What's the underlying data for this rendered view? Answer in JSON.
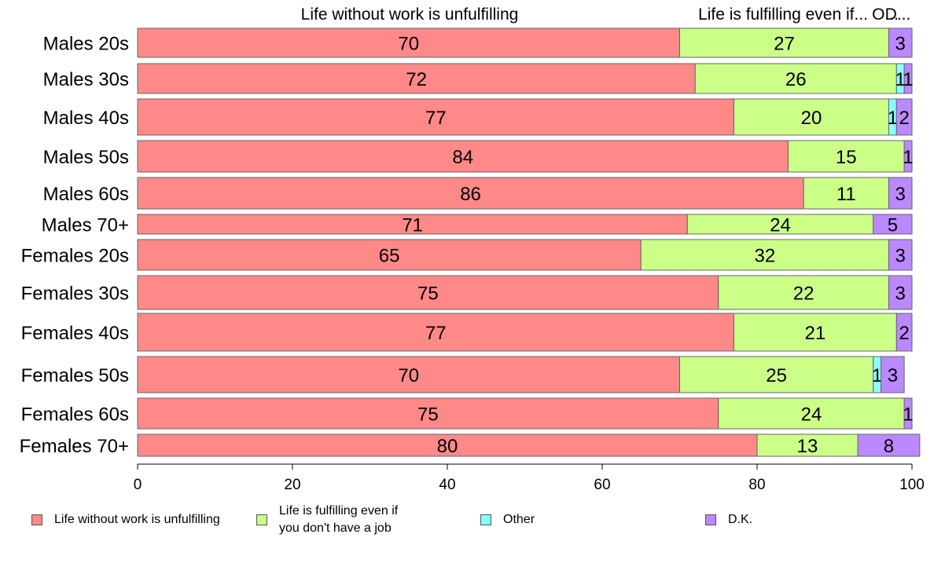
{
  "chart_data": {
    "type": "bar",
    "orientation": "horizontal",
    "stacked": true,
    "categories": [
      "Males 20s",
      "Males 30s",
      "Males 40s",
      "Males 50s",
      "Males 60s",
      "Males 70+",
      "Females 20s",
      "Females 30s",
      "Females 40s",
      "Females 50s",
      "Females 60s",
      "Females 70+"
    ],
    "series": [
      {
        "name": "Life without work is unfulfilling",
        "color": "#ff8888",
        "values": [
          70,
          72,
          77,
          84,
          86,
          71,
          65,
          75,
          77,
          70,
          75,
          80
        ]
      },
      {
        "name": "Life is fulfilling even if you don't have a job",
        "color": "#ccff88",
        "values": [
          27,
          26,
          20,
          15,
          11,
          24,
          32,
          22,
          21,
          25,
          24,
          13
        ]
      },
      {
        "name": "Other",
        "color": "#88ffff",
        "values": [
          0,
          1,
          1,
          0,
          0,
          0,
          0,
          0,
          0,
          1,
          0,
          0
        ]
      },
      {
        "name": "D.K.",
        "color": "#bb88ff",
        "values": [
          3,
          1,
          2,
          1,
          3,
          5,
          3,
          3,
          2,
          3,
          1,
          8
        ]
      }
    ],
    "column_headers": [
      "Life without work is unfulfilling",
      "Life is fulfilling even if...",
      "O...",
      "D..."
    ],
    "xlim": [
      0,
      100
    ],
    "xticks": [
      "0",
      "20",
      "40",
      "60",
      "80",
      "100"
    ],
    "legend_position": "bottom",
    "legend_labels": [
      [
        "Life without work is unfulfilling"
      ],
      [
        "Life is fulfilling even if",
        "you don't have a job"
      ],
      [
        "Other"
      ],
      [
        "D.K."
      ]
    ],
    "grid": false
  }
}
